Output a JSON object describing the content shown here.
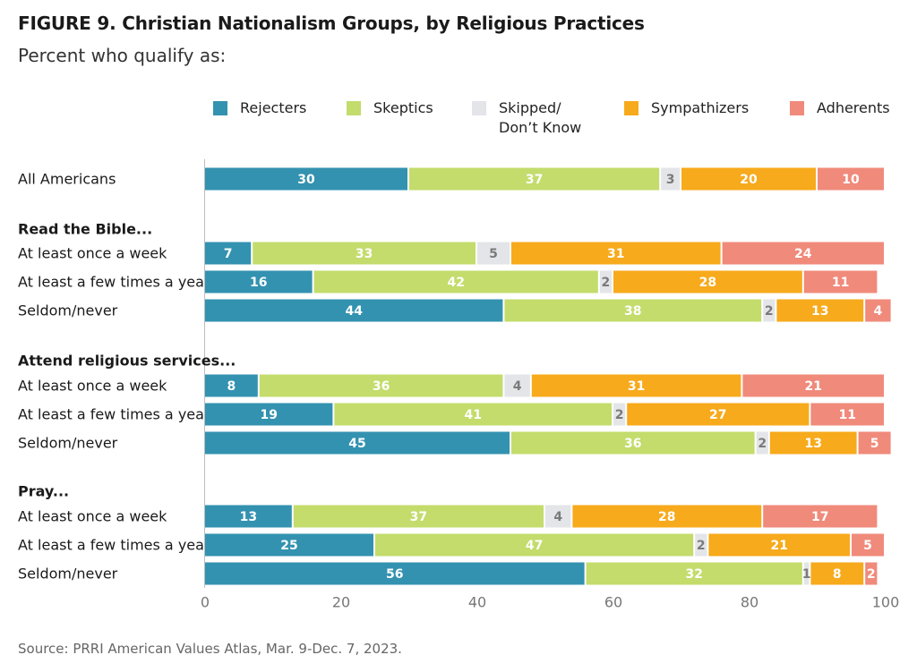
{
  "figure": {
    "title": "FIGURE 9.  Christian Nationalism Groups, by Religious Practices",
    "subtitle": "Percent who qualify as:",
    "source": "Source: PRRI American Values Atlas, Mar. 9-Dec. 7, 2023."
  },
  "chart_data": {
    "type": "bar",
    "orientation": "horizontal",
    "stacked": true,
    "xlim": [
      0,
      100
    ],
    "xticks": [
      0,
      20,
      40,
      60,
      80,
      100
    ],
    "legend_position": "top",
    "legend": [
      {
        "name": "Rejecters",
        "color": "#3392b0"
      },
      {
        "name": "Skeptics",
        "color": "#c3dc6c"
      },
      {
        "name": "Skipped/\nDon’t Know",
        "color": "#e3e5e8"
      },
      {
        "name": "Sympathizers",
        "color": "#f7aa1c"
      },
      {
        "name": "Adherents",
        "color": "#f08a7b"
      }
    ],
    "groups": [
      {
        "heading": "",
        "rows": [
          {
            "label": "All Americans",
            "values": [
              30,
              37,
              3,
              20,
              10
            ]
          }
        ]
      },
      {
        "heading": "Read the Bible...",
        "rows": [
          {
            "label": "At least once a week",
            "values": [
              7,
              33,
              5,
              31,
              24
            ]
          },
          {
            "label": "At least a few times a year",
            "values": [
              16,
              42,
              2,
              28,
              11
            ]
          },
          {
            "label": "Seldom/never",
            "values": [
              44,
              38,
              2,
              13,
              4
            ]
          }
        ]
      },
      {
        "heading": "Attend religious services...",
        "rows": [
          {
            "label": "At least once a week",
            "values": [
              8,
              36,
              4,
              31,
              21
            ]
          },
          {
            "label": "At least a few times a year",
            "values": [
              19,
              41,
              2,
              27,
              11
            ]
          },
          {
            "label": "Seldom/never",
            "values": [
              45,
              36,
              2,
              13,
              5
            ]
          }
        ]
      },
      {
        "heading": "Pray...",
        "rows": [
          {
            "label": "At least once a week",
            "values": [
              13,
              37,
              4,
              28,
              17
            ]
          },
          {
            "label": "At least a few times a year",
            "values": [
              25,
              47,
              2,
              21,
              5
            ]
          },
          {
            "label": "Seldom/never",
            "values": [
              56,
              32,
              1,
              8,
              2
            ]
          }
        ]
      }
    ]
  }
}
